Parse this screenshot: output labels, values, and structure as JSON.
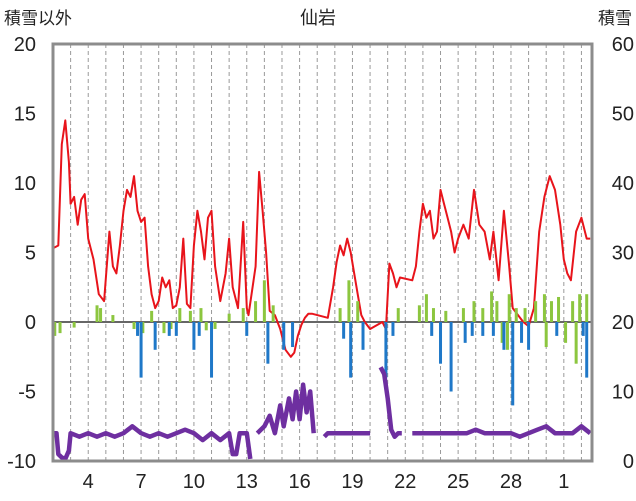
{
  "chart_data": {
    "type": "line",
    "title": "仙岩",
    "ylabel_left": "積雪以外",
    "ylabel_right": "積雪",
    "ylim_left": [
      -10,
      20
    ],
    "ylim_right": [
      0,
      60
    ],
    "yticks_left": [
      "20",
      "15",
      "10",
      "5",
      "0",
      "-5",
      "-10"
    ],
    "yticks_right": [
      "60",
      "50",
      "40",
      "30",
      "20",
      "10",
      "0"
    ],
    "xticks": [
      "4",
      "7",
      "10",
      "13",
      "16",
      "19",
      "22",
      "25",
      "28",
      "1"
    ],
    "grid": "vertical-dashed",
    "series": [
      {
        "name": "",
        "kind": "line",
        "color": "#e8141b",
        "axis": "left",
        "points": [
          [
            2.0,
            5.3
          ],
          [
            2.3,
            5.5
          ],
          [
            2.5,
            12.8
          ],
          [
            2.7,
            14.5
          ],
          [
            2.9,
            11.5
          ],
          [
            3.0,
            8.5
          ],
          [
            3.2,
            9.0
          ],
          [
            3.4,
            7.0
          ],
          [
            3.6,
            8.8
          ],
          [
            3.8,
            9.2
          ],
          [
            4.0,
            6.0
          ],
          [
            4.3,
            4.5
          ],
          [
            4.6,
            2.0
          ],
          [
            4.9,
            1.5
          ],
          [
            5.2,
            6.5
          ],
          [
            5.4,
            4.0
          ],
          [
            5.6,
            3.5
          ],
          [
            5.8,
            5.5
          ],
          [
            6.0,
            8.0
          ],
          [
            6.2,
            9.5
          ],
          [
            6.4,
            9.0
          ],
          [
            6.6,
            10.5
          ],
          [
            6.8,
            8.0
          ],
          [
            7.0,
            7.2
          ],
          [
            7.2,
            7.5
          ],
          [
            7.4,
            4.0
          ],
          [
            7.6,
            2.0
          ],
          [
            7.8,
            1.0
          ],
          [
            8.0,
            1.5
          ],
          [
            8.2,
            3.2
          ],
          [
            8.4,
            2.5
          ],
          [
            8.6,
            3.0
          ],
          [
            8.8,
            1.0
          ],
          [
            9.0,
            1.2
          ],
          [
            9.2,
            2.5
          ],
          [
            9.4,
            6.0
          ],
          [
            9.6,
            1.3
          ],
          [
            9.8,
            1.0
          ],
          [
            10.0,
            5.5
          ],
          [
            10.2,
            8.0
          ],
          [
            10.4,
            6.5
          ],
          [
            10.6,
            4.5
          ],
          [
            10.8,
            7.5
          ],
          [
            11.0,
            8.0
          ],
          [
            11.2,
            4.0
          ],
          [
            11.5,
            1.5
          ],
          [
            11.8,
            3.5
          ],
          [
            12.0,
            6.0
          ],
          [
            12.2,
            2.5
          ],
          [
            12.5,
            1.0
          ],
          [
            12.8,
            7.2
          ],
          [
            13.0,
            1.0
          ],
          [
            13.1,
            0.5
          ],
          [
            13.5,
            4.0
          ],
          [
            13.7,
            10.8
          ],
          [
            13.9,
            8.0
          ],
          [
            14.1,
            5.0
          ],
          [
            14.3,
            0.8
          ],
          [
            14.6,
            0.5
          ],
          [
            14.9,
            -0.5
          ],
          [
            15.2,
            -2.0
          ],
          [
            15.5,
            -2.5
          ],
          [
            15.7,
            -2.2
          ],
          [
            15.9,
            -1.0
          ],
          [
            16.1,
            -0.2
          ],
          [
            16.3,
            0.3
          ],
          [
            16.5,
            0.6
          ],
          [
            16.7,
            0.6
          ],
          [
            17.6,
            0.3
          ],
          [
            17.9,
            2.5
          ],
          [
            18.1,
            4.3
          ],
          [
            18.3,
            5.5
          ],
          [
            18.5,
            4.8
          ],
          [
            18.7,
            6.0
          ],
          [
            18.9,
            5.0
          ],
          [
            19.1,
            3.5
          ],
          [
            19.3,
            2.0
          ],
          [
            19.5,
            0.5
          ],
          [
            19.7,
            0.0
          ],
          [
            20.0,
            -0.5
          ],
          [
            20.7,
            0.0
          ],
          [
            20.9,
            -0.5
          ],
          [
            21.1,
            4.2
          ],
          [
            21.3,
            3.5
          ],
          [
            21.5,
            2.5
          ],
          [
            21.7,
            3.2
          ],
          [
            22.4,
            3.0
          ],
          [
            22.6,
            4.0
          ],
          [
            22.8,
            6.5
          ],
          [
            23.0,
            8.5
          ],
          [
            23.2,
            7.5
          ],
          [
            23.4,
            8.0
          ],
          [
            23.6,
            6.0
          ],
          [
            23.8,
            6.5
          ],
          [
            24.0,
            9.5
          ],
          [
            24.2,
            8.5
          ],
          [
            24.4,
            7.5
          ],
          [
            24.6,
            6.5
          ],
          [
            24.8,
            5.0
          ],
          [
            25.0,
            6.0
          ],
          [
            25.3,
            7.0
          ],
          [
            25.6,
            6.0
          ],
          [
            25.9,
            9.5
          ],
          [
            26.2,
            7.0
          ],
          [
            26.5,
            6.5
          ],
          [
            26.8,
            4.5
          ],
          [
            27.0,
            6.5
          ],
          [
            27.3,
            3.0
          ],
          [
            27.6,
            8.0
          ],
          [
            27.9,
            4.0
          ],
          [
            28.1,
            1.0
          ],
          [
            28.4,
            0.5
          ],
          [
            28.7,
            0.0
          ],
          [
            29.0,
            -0.3
          ],
          [
            29.3,
            1.0
          ],
          [
            29.6,
            6.5
          ],
          [
            29.9,
            9.0
          ],
          [
            30.2,
            10.5
          ],
          [
            30.5,
            9.5
          ],
          [
            30.8,
            7.0
          ],
          [
            31.0,
            4.5
          ],
          [
            31.2,
            3.5
          ],
          [
            31.4,
            3.0
          ],
          [
            31.7,
            6.5
          ],
          [
            32.0,
            7.5
          ],
          [
            32.3,
            6.0
          ],
          [
            32.5,
            6.0
          ]
        ]
      },
      {
        "name": "",
        "kind": "bars",
        "color": "#8cc63f",
        "axis": "left",
        "points": [
          [
            2.1,
            -1.0
          ],
          [
            2.4,
            -0.8
          ],
          [
            3.2,
            -0.4
          ],
          [
            4.5,
            1.2
          ],
          [
            4.7,
            1.0
          ],
          [
            5.4,
            0.5
          ],
          [
            6.6,
            -0.5
          ],
          [
            7.1,
            -0.8
          ],
          [
            7.6,
            0.8
          ],
          [
            8.3,
            -0.8
          ],
          [
            8.7,
            -0.5
          ],
          [
            9.2,
            1.0
          ],
          [
            9.8,
            0.8
          ],
          [
            10.4,
            1.0
          ],
          [
            10.7,
            -0.6
          ],
          [
            11.2,
            -0.5
          ],
          [
            12.0,
            0.6
          ],
          [
            12.8,
            1.0
          ],
          [
            13.5,
            1.5
          ],
          [
            14.0,
            3.0
          ],
          [
            14.5,
            1.2
          ],
          [
            18.3,
            1.0
          ],
          [
            18.8,
            3.0
          ],
          [
            19.3,
            1.5
          ],
          [
            21.6,
            1.0
          ],
          [
            22.8,
            1.2
          ],
          [
            23.2,
            2.0
          ],
          [
            23.6,
            1.0
          ],
          [
            24.3,
            0.8
          ],
          [
            25.3,
            1.0
          ],
          [
            25.9,
            1.5
          ],
          [
            26.4,
            1.0
          ],
          [
            26.9,
            2.2
          ],
          [
            27.2,
            1.5
          ],
          [
            27.5,
            -1.5
          ],
          [
            27.9,
            2.0
          ],
          [
            28.3,
            1.0
          ],
          [
            28.8,
            1.0
          ],
          [
            29.4,
            1.5
          ],
          [
            29.9,
            2.0
          ],
          [
            30.3,
            1.5
          ],
          [
            30.7,
            1.8
          ],
          [
            31.1,
            -1.5
          ],
          [
            31.5,
            1.5
          ],
          [
            31.9,
            2.0
          ],
          [
            32.3,
            2.0
          ],
          [
            27.8,
            -2.0
          ],
          [
            30.0,
            -1.8
          ],
          [
            31.7,
            -3.0
          ]
        ]
      },
      {
        "name": "",
        "kind": "bars",
        "color": "#1f78c8",
        "axis": "left",
        "points": [
          [
            6.8,
            -1.0
          ],
          [
            7.0,
            -4.0
          ],
          [
            7.8,
            -2.0
          ],
          [
            8.6,
            -1.0
          ],
          [
            9.0,
            -1.0
          ],
          [
            10.0,
            -2.0
          ],
          [
            10.3,
            -1.0
          ],
          [
            11.0,
            -4.0
          ],
          [
            13.0,
            -1.0
          ],
          [
            14.2,
            -3.0
          ],
          [
            15.1,
            -2.0
          ],
          [
            15.6,
            -1.8
          ],
          [
            18.5,
            -1.2
          ],
          [
            18.9,
            -4.0
          ],
          [
            19.6,
            -2.0
          ],
          [
            20.9,
            -4.0
          ],
          [
            21.3,
            -1.0
          ],
          [
            23.5,
            -1.0
          ],
          [
            24.0,
            -3.0
          ],
          [
            24.6,
            -5.0
          ],
          [
            25.4,
            -1.5
          ],
          [
            25.8,
            -1.0
          ],
          [
            26.4,
            -1.0
          ],
          [
            27.0,
            -1.0
          ],
          [
            27.6,
            -2.0
          ],
          [
            28.1,
            -6.0
          ],
          [
            28.6,
            -1.5
          ],
          [
            29.0,
            -2.0
          ],
          [
            30.6,
            -1.0
          ],
          [
            32.1,
            -1.0
          ],
          [
            32.3,
            -4.0
          ]
        ]
      },
      {
        "name": "",
        "kind": "line",
        "color": "#6e2fa0",
        "axis": "right",
        "segments": [
          [
            [
              2.0,
              4.0
            ],
            [
              2.2,
              4.0
            ],
            [
              2.3,
              1.0
            ],
            [
              2.5,
              0.5
            ],
            [
              2.7,
              0.3
            ],
            [
              2.9,
              1.5
            ],
            [
              3.0,
              4.0
            ],
            [
              3.5,
              3.5
            ],
            [
              4.0,
              4.0
            ],
            [
              4.5,
              3.5
            ],
            [
              5.0,
              4.0
            ],
            [
              5.5,
              3.5
            ],
            [
              6.0,
              4.0
            ],
            [
              6.5,
              5.0
            ],
            [
              7.0,
              4.0
            ],
            [
              7.5,
              3.5
            ],
            [
              8.0,
              4.0
            ],
            [
              8.5,
              3.5
            ],
            [
              9.0,
              4.0
            ],
            [
              9.5,
              4.5
            ],
            [
              10.0,
              4.0
            ],
            [
              10.5,
              3.0
            ],
            [
              11.0,
              4.0
            ],
            [
              11.5,
              3.0
            ],
            [
              12.0,
              4.0
            ],
            [
              12.2,
              1.0
            ],
            [
              12.4,
              1.0
            ],
            [
              12.6,
              4.0
            ],
            [
              13.0,
              4.0
            ],
            [
              13.2,
              0.3
            ]
          ],
          [
            [
              13.6,
              4.0
            ],
            [
              14.0,
              5.0
            ],
            [
              14.3,
              6.5
            ],
            [
              14.6,
              4.0
            ],
            [
              14.9,
              8.0
            ],
            [
              15.1,
              5.0
            ],
            [
              15.4,
              9.0
            ],
            [
              15.6,
              6.0
            ],
            [
              15.8,
              10.0
            ],
            [
              16.0,
              6.0
            ],
            [
              16.2,
              11.0
            ],
            [
              16.4,
              7.0
            ],
            [
              16.6,
              10.0
            ],
            [
              16.8,
              4.0
            ]
          ],
          [
            [
              17.4,
              3.5
            ],
            [
              17.6,
              4.0
            ],
            [
              18.0,
              4.0
            ],
            [
              18.5,
              4.0
            ],
            [
              19.0,
              4.0
            ],
            [
              19.5,
              4.0
            ],
            [
              20.0,
              4.0
            ]
          ],
          [
            [
              20.6,
              13.5
            ],
            [
              20.8,
              12.5
            ],
            [
              21.0,
              9.0
            ],
            [
              21.2,
              4.5
            ],
            [
              21.4,
              3.5
            ],
            [
              21.6,
              4.0
            ],
            [
              21.8,
              4.0
            ]
          ],
          [
            [
              22.4,
              4.0
            ],
            [
              23.0,
              4.0
            ],
            [
              23.5,
              4.0
            ],
            [
              24.0,
              4.0
            ],
            [
              24.5,
              4.0
            ],
            [
              25.0,
              4.0
            ],
            [
              25.5,
              4.0
            ],
            [
              26.0,
              4.5
            ],
            [
              26.5,
              4.0
            ],
            [
              27.0,
              4.0
            ],
            [
              27.5,
              4.0
            ],
            [
              28.0,
              4.0
            ],
            [
              28.5,
              3.5
            ],
            [
              29.0,
              4.0
            ],
            [
              29.5,
              4.5
            ],
            [
              30.0,
              5.0
            ],
            [
              30.5,
              4.0
            ],
            [
              31.0,
              4.0
            ],
            [
              31.5,
              4.0
            ],
            [
              32.0,
              5.0
            ],
            [
              32.5,
              4.0
            ]
          ]
        ]
      }
    ]
  }
}
